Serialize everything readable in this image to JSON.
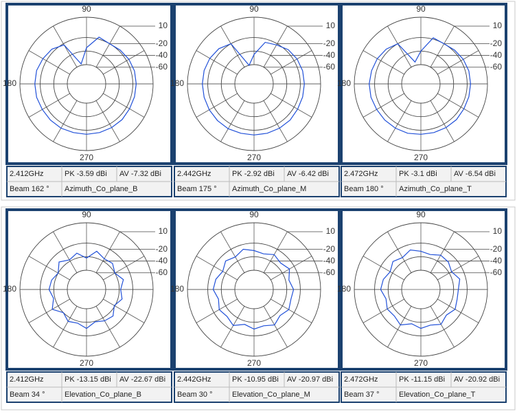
{
  "chart_data": [
    {
      "type": "polar",
      "angles": [
        0,
        15,
        30,
        45,
        60,
        75,
        90,
        105,
        120,
        135,
        150,
        165,
        180,
        195,
        210,
        225,
        240,
        255,
        270,
        285,
        300,
        315,
        330,
        345
      ],
      "values": [
        -15,
        -15,
        -16,
        -18,
        -20,
        -17,
        -35,
        -58,
        -22,
        -16,
        -14,
        -12,
        -12,
        -12,
        -13,
        -13,
        -13,
        -14,
        -14,
        -14,
        -14,
        -14,
        -15,
        -15
      ],
      "color": "#1f4fd8",
      "rlim": [
        -60,
        10
      ],
      "rticks": [
        10,
        -20,
        -40,
        -60
      ],
      "thetaticks": [
        90,
        180,
        270
      ],
      "info": {
        "freq": "2.412GHz",
        "pk": "PK -3.59 dBi",
        "av": "AV -7.32 dBi",
        "beam": "Beam 162 °",
        "name": "Azimuth_Co_plane_B"
      }
    },
    {
      "type": "polar",
      "angles": [
        0,
        15,
        30,
        45,
        60,
        75,
        90,
        105,
        120,
        135,
        150,
        165,
        180,
        195,
        210,
        225,
        240,
        255,
        270,
        285,
        300,
        315,
        330,
        345
      ],
      "values": [
        -14,
        -14,
        -15,
        -17,
        -22,
        -25,
        -45,
        -60,
        -20,
        -15,
        -13,
        -12,
        -12,
        -12,
        -12,
        -12,
        -12,
        -13,
        -13,
        -13,
        -13,
        -13,
        -14,
        -14
      ],
      "color": "#1f4fd8",
      "rlim": [
        -60,
        10
      ],
      "rticks": [
        10,
        -20,
        -40,
        -60
      ],
      "thetaticks": [
        90,
        180,
        270
      ],
      "info": {
        "freq": "2.442GHz",
        "pk": "PK -2.92 dBi",
        "av": "AV -6.42 dBi",
        "beam": "Beam 175 °",
        "name": "Azimuth_Co_plane_M"
      }
    },
    {
      "type": "polar",
      "angles": [
        0,
        15,
        30,
        45,
        60,
        75,
        90,
        105,
        120,
        135,
        150,
        165,
        180,
        195,
        210,
        225,
        240,
        255,
        270,
        285,
        300,
        315,
        330,
        345
      ],
      "values": [
        -15,
        -15,
        -16,
        -18,
        -20,
        -18,
        -40,
        -55,
        -20,
        -16,
        -14,
        -13,
        -12,
        -12,
        -13,
        -13,
        -13,
        -13,
        -14,
        -14,
        -14,
        -14,
        -15,
        -15
      ],
      "color": "#1f4fd8",
      "rlim": [
        -60,
        10
      ],
      "rticks": [
        10,
        -20,
        -40,
        -60
      ],
      "thetaticks": [
        90,
        180,
        270
      ],
      "info": {
        "freq": "2.472GHz",
        "pk": "PK -3.1 dBi",
        "av": "AV -6.54 dBi",
        "beam": "Beam 180 °",
        "name": "Azimuth_Co_plane_T"
      }
    },
    {
      "type": "polar",
      "angles": [
        0,
        15,
        30,
        45,
        60,
        75,
        90,
        105,
        120,
        135,
        150,
        165,
        180,
        195,
        210,
        225,
        240,
        255,
        270,
        285,
        300,
        315,
        330,
        345
      ],
      "values": [
        -38,
        -32,
        -40,
        -34,
        -36,
        -30,
        -42,
        -33,
        -38,
        -31,
        -40,
        -35,
        -33,
        -38,
        -30,
        -40,
        -34,
        -37,
        -31,
        -39,
        -35,
        -33,
        -41,
        -34
      ],
      "color": "#1f4fd8",
      "rlim": [
        -60,
        10
      ],
      "rticks": [
        10,
        -20,
        -40,
        -60
      ],
      "thetaticks": [
        90,
        180,
        270
      ],
      "info": {
        "freq": "2.412GHz",
        "pk": "PK -13.15 dBi",
        "av": "AV -22.67 dBi",
        "beam": "Beam 34 °",
        "name": "Elevation_Co_plane_B"
      }
    },
    {
      "type": "polar",
      "angles": [
        0,
        15,
        30,
        45,
        60,
        75,
        90,
        105,
        120,
        135,
        150,
        165,
        180,
        195,
        210,
        225,
        240,
        255,
        270,
        285,
        300,
        315,
        330,
        345
      ],
      "values": [
        -30,
        -35,
        -28,
        -33,
        -29,
        -34,
        -31,
        -27,
        -33,
        -29,
        -35,
        -30,
        -28,
        -34,
        -29,
        -32,
        -27,
        -35,
        -30,
        -33,
        -28,
        -34,
        -29,
        -32
      ],
      "color": "#1f4fd8",
      "rlim": [
        -60,
        10
      ],
      "rticks": [
        10,
        -20,
        -40,
        -60
      ],
      "thetaticks": [
        90,
        180,
        270
      ],
      "info": {
        "freq": "2.442GHz",
        "pk": "PK -10.95 dBi",
        "av": "AV -20.97 dBi",
        "beam": "Beam 30 °",
        "name": "Elevation_Co_plane_M"
      }
    },
    {
      "type": "polar",
      "angles": [
        0,
        15,
        30,
        45,
        60,
        75,
        90,
        105,
        120,
        135,
        150,
        165,
        180,
        195,
        210,
        225,
        240,
        255,
        270,
        285,
        300,
        315,
        330,
        345
      ],
      "values": [
        -33,
        -29,
        -36,
        -31,
        -30,
        -35,
        -32,
        -28,
        -34,
        -30,
        -36,
        -31,
        -29,
        -35,
        -31,
        -33,
        -28,
        -36,
        -31,
        -34,
        -29,
        -35,
        -30,
        -33
      ],
      "color": "#1f4fd8",
      "rlim": [
        -60,
        10
      ],
      "rticks": [
        10,
        -20,
        -40,
        -60
      ],
      "thetaticks": [
        90,
        180,
        270
      ],
      "info": {
        "freq": "2.472GHz",
        "pk": "PK -11.15 dBi",
        "av": "AV -20.92 dBi",
        "beam": "Beam 37 °",
        "name": "Elevation_Co_plane_T"
      }
    }
  ]
}
